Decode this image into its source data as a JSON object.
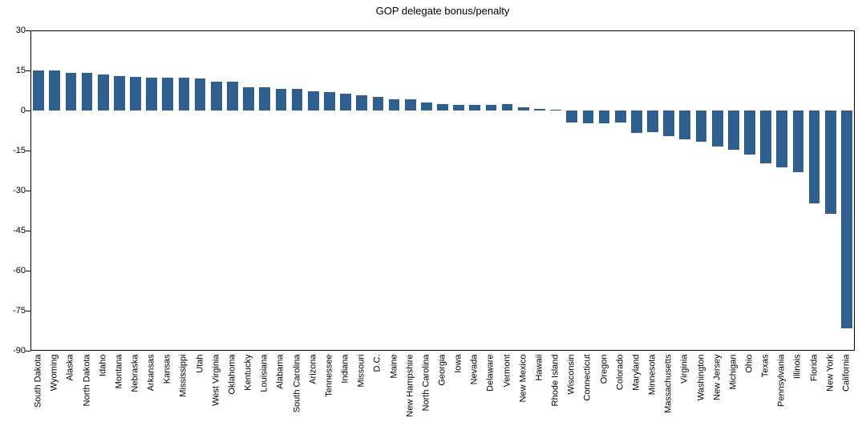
{
  "chart_data": {
    "type": "bar",
    "title": "GOP delegate bonus/penalty",
    "categories": [
      "South Dakota",
      "Wyoming",
      "Alaska",
      "North Dakota",
      "Idaho",
      "Montana",
      "Nebraska",
      "Arkansas",
      "Kansas",
      "Mississippi",
      "Utah",
      "West Virginia",
      "Oklahoma",
      "Kentucky",
      "Louisiana",
      "Alabama",
      "South Carolina",
      "Arizona",
      "Tennessee",
      "Indiana",
      "Missouri",
      "D.C.",
      "Maine",
      "New Hampshire",
      "North Carolina",
      "Georgia",
      "Iowa",
      "Nevada",
      "Delaware",
      "Vermont",
      "New Mexico",
      "Hawaii",
      "Rhode Island",
      "Wisconsin",
      "Connecticut",
      "Oregon",
      "Colorado",
      "Maryland",
      "Minnesota",
      "Massachusetts",
      "Virginia",
      "Washington",
      "New Jersey",
      "Michigan",
      "Ohio",
      "Texas",
      "Pennsylvania",
      "Illinois",
      "Florida",
      "New York",
      "California"
    ],
    "values": [
      15.1,
      15.1,
      14.2,
      14.1,
      13.4,
      12.9,
      12.5,
      12.2,
      12.2,
      12.2,
      12.1,
      10.8,
      10.7,
      8.8,
      8.7,
      8.2,
      8.1,
      7.2,
      7.0,
      6.2,
      5.8,
      5.0,
      4.3,
      4.2,
      3.1,
      2.4,
      2.0,
      2.1,
      2.1,
      2.3,
      1.2,
      0.5,
      0.2,
      -4.5,
      -4.9,
      -4.9,
      -4.5,
      -8.4,
      -8.2,
      -9.5,
      -10.9,
      -11.8,
      -13.4,
      -14.6,
      -16.6,
      -19.8,
      -21.3,
      -23.2,
      -34.8,
      -38.6,
      -81.5
    ],
    "xlabel": "",
    "ylabel": "",
    "ylim": [
      -90,
      30
    ],
    "yticks": [
      30,
      15,
      0,
      -15,
      -30,
      -45,
      -60,
      -75,
      -90
    ],
    "grid": "horizontal gridlines at each y tick",
    "legend": "none",
    "bar_color": "#2E5F8E",
    "gridline_color": "#C8C8C8",
    "axis_color": "#000000",
    "background_color": "#FFFFFF"
  }
}
